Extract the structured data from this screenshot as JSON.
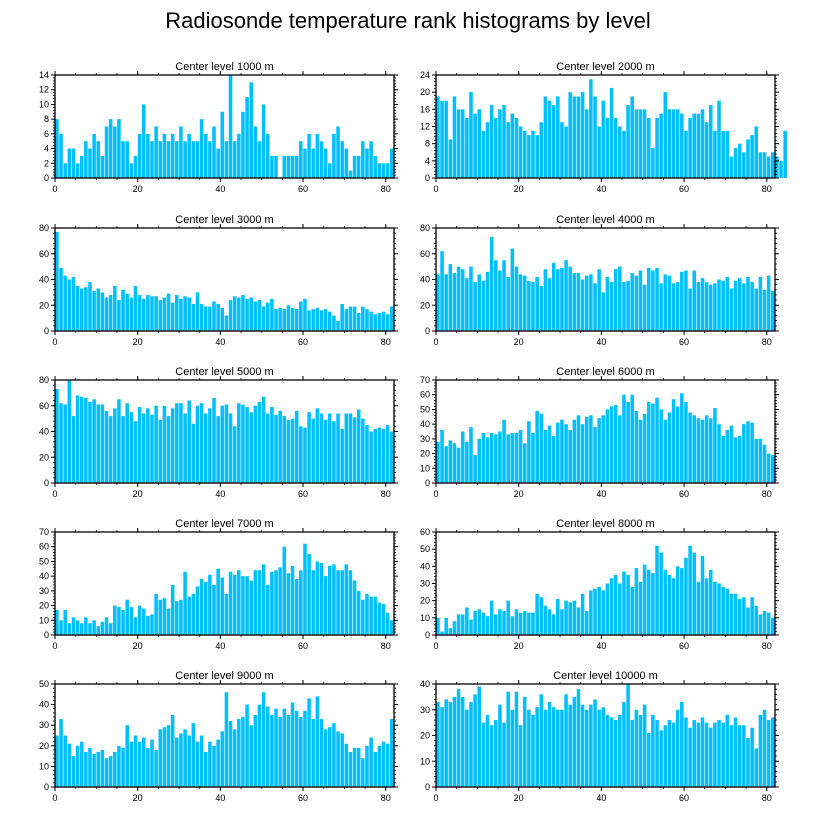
{
  "page_title": "Radiosonde temperature rank histograms by level",
  "colors": {
    "bar": "#00bfff",
    "axis": "#000000"
  },
  "chart_data": [
    {
      "type": "bar",
      "title": "Center level 1000 m",
      "xlabel": "",
      "ylabel": "",
      "xlim": [
        0,
        82
      ],
      "ylim": [
        0,
        14
      ],
      "xticks": [
        0,
        20,
        40,
        60,
        80
      ],
      "yticks": [
        0,
        2,
        4,
        6,
        8,
        10,
        12,
        14
      ],
      "values": [
        8,
        6,
        2,
        4,
        4,
        2,
        3,
        5,
        4,
        6,
        5,
        3,
        7,
        8,
        7,
        8,
        5,
        5,
        2,
        3,
        6,
        10,
        6,
        5,
        7,
        5,
        6,
        5,
        6,
        5,
        7,
        5,
        6,
        5,
        5,
        8,
        6,
        5,
        7,
        4,
        9,
        5,
        14,
        5,
        6,
        9,
        11,
        13,
        7,
        5,
        10,
        6,
        3,
        3,
        0,
        3,
        3,
        3,
        3,
        5,
        4,
        6,
        4,
        6,
        5,
        4,
        2,
        6,
        7,
        5,
        4,
        1,
        3,
        3,
        5,
        4,
        5,
        3,
        2,
        2,
        2,
        4
      ]
    },
    {
      "type": "bar",
      "title": "Center level 2000 m",
      "xlabel": "",
      "ylabel": "",
      "xlim": [
        0,
        82
      ],
      "ylim": [
        0,
        24
      ],
      "xticks": [
        0,
        20,
        40,
        60,
        80
      ],
      "yticks": [
        0,
        4,
        8,
        12,
        16,
        20,
        24
      ],
      "values": [
        19,
        18,
        18,
        9,
        19,
        16,
        16,
        14,
        20,
        15,
        16,
        11,
        13,
        17,
        14,
        16,
        17,
        13,
        15,
        14,
        12,
        11,
        10,
        11,
        10,
        13,
        19,
        18,
        17,
        19,
        13,
        12,
        20,
        19,
        19,
        20,
        16,
        23,
        19,
        12,
        18,
        14,
        21,
        14,
        12,
        11,
        17,
        19,
        16,
        16,
        16,
        14,
        7,
        14,
        15,
        20,
        16,
        16,
        16,
        15,
        11,
        14,
        15,
        15,
        16,
        13,
        17,
        11,
        18,
        11,
        11,
        5,
        7,
        8,
        6,
        9,
        10,
        12,
        6,
        6,
        5,
        6,
        5,
        4,
        11
      ]
    },
    {
      "type": "bar",
      "title": "Center level 3000 m",
      "xlabel": "",
      "ylabel": "",
      "xlim": [
        0,
        82
      ],
      "ylim": [
        0,
        80
      ],
      "xticks": [
        0,
        20,
        40,
        60,
        80
      ],
      "yticks": [
        0,
        20,
        40,
        60,
        80
      ],
      "values": [
        77,
        49,
        43,
        40,
        42,
        35,
        33,
        34,
        38,
        31,
        33,
        30,
        26,
        28,
        35,
        24,
        32,
        29,
        26,
        35,
        28,
        25,
        28,
        27,
        27,
        24,
        26,
        29,
        22,
        28,
        25,
        27,
        26,
        21,
        30,
        21,
        19,
        19,
        23,
        21,
        18,
        12,
        24,
        27,
        26,
        28,
        25,
        26,
        23,
        24,
        19,
        22,
        25,
        17,
        18,
        17,
        20,
        18,
        17,
        23,
        25,
        16,
        17,
        18,
        16,
        17,
        15,
        12,
        8,
        21,
        17,
        19,
        19,
        14,
        19,
        17,
        15,
        13,
        14,
        15,
        13,
        19
      ]
    },
    {
      "type": "bar",
      "title": "Center level 4000 m",
      "xlabel": "",
      "ylabel": "",
      "xlim": [
        0,
        82
      ],
      "ylim": [
        0,
        80
      ],
      "xticks": [
        0,
        20,
        40,
        60,
        80
      ],
      "yticks": [
        0,
        20,
        40,
        60,
        80
      ],
      "values": [
        44,
        62,
        44,
        52,
        45,
        50,
        48,
        41,
        50,
        38,
        44,
        39,
        46,
        73,
        55,
        47,
        55,
        42,
        64,
        50,
        44,
        43,
        39,
        38,
        42,
        35,
        48,
        41,
        53,
        48,
        49,
        55,
        50,
        45,
        45,
        40,
        43,
        44,
        37,
        48,
        30,
        42,
        38,
        48,
        50,
        38,
        39,
        45,
        43,
        47,
        36,
        49,
        47,
        49,
        37,
        44,
        43,
        37,
        38,
        46,
        47,
        33,
        47,
        38,
        41,
        38,
        36,
        37,
        40,
        39,
        42,
        33,
        39,
        41,
        37,
        42,
        38,
        33,
        42,
        32,
        43,
        31
      ]
    },
    {
      "type": "bar",
      "title": "Center level 5000 m",
      "xlabel": "",
      "ylabel": "",
      "xlim": [
        0,
        82
      ],
      "ylim": [
        0,
        80
      ],
      "xticks": [
        0,
        20,
        40,
        60,
        80
      ],
      "yticks": [
        0,
        20,
        40,
        60,
        80
      ],
      "values": [
        73,
        62,
        61,
        80,
        52,
        68,
        67,
        66,
        63,
        65,
        61,
        61,
        56,
        52,
        58,
        65,
        52,
        62,
        55,
        48,
        59,
        54,
        58,
        53,
        60,
        49,
        60,
        52,
        58,
        62,
        62,
        54,
        64,
        46,
        60,
        62,
        54,
        58,
        66,
        52,
        60,
        61,
        54,
        44,
        62,
        61,
        59,
        55,
        60,
        63,
        67,
        54,
        59,
        53,
        56,
        52,
        49,
        50,
        56,
        44,
        43,
        55,
        50,
        58,
        54,
        49,
        54,
        48,
        54,
        42,
        54,
        54,
        51,
        57,
        50,
        45,
        40,
        42,
        43,
        42,
        45,
        40
      ]
    },
    {
      "type": "bar",
      "title": "Center level 6000 m",
      "xlabel": "",
      "ylabel": "",
      "xlim": [
        0,
        82
      ],
      "ylim": [
        0,
        70
      ],
      "xticks": [
        0,
        20,
        40,
        60,
        80
      ],
      "yticks": [
        0,
        10,
        20,
        30,
        40,
        50,
        60,
        70
      ],
      "values": [
        28,
        36,
        25,
        29,
        27,
        24,
        35,
        28,
        38,
        19,
        30,
        34,
        31,
        34,
        33,
        35,
        43,
        33,
        34,
        34,
        36,
        27,
        42,
        34,
        49,
        47,
        36,
        39,
        32,
        41,
        43,
        40,
        36,
        43,
        46,
        40,
        45,
        46,
        38,
        44,
        46,
        50,
        52,
        53,
        46,
        60,
        55,
        60,
        49,
        43,
        47,
        55,
        54,
        58,
        50,
        43,
        48,
        57,
        52,
        61,
        55,
        48,
        46,
        44,
        43,
        46,
        44,
        51,
        40,
        32,
        36,
        39,
        31,
        32,
        40,
        42,
        41,
        30,
        30,
        26,
        20,
        19
      ]
    },
    {
      "type": "bar",
      "title": "Center level 7000 m",
      "xlabel": "",
      "ylabel": "",
      "xlim": [
        0,
        82
      ],
      "ylim": [
        0,
        70
      ],
      "xticks": [
        0,
        20,
        40,
        60,
        80
      ],
      "yticks": [
        0,
        10,
        20,
        30,
        40,
        50,
        60,
        70
      ],
      "values": [
        17,
        10,
        17,
        8,
        12,
        10,
        8,
        12,
        8,
        10,
        6,
        9,
        12,
        8,
        20,
        19,
        17,
        24,
        19,
        12,
        20,
        18,
        13,
        14,
        28,
        24,
        25,
        18,
        34,
        23,
        24,
        43,
        26,
        28,
        33,
        38,
        36,
        41,
        34,
        45,
        39,
        28,
        43,
        41,
        44,
        40,
        40,
        37,
        44,
        44,
        48,
        34,
        43,
        44,
        46,
        60,
        42,
        47,
        38,
        44,
        62,
        55,
        44,
        50,
        49,
        40,
        47,
        48,
        44,
        44,
        48,
        44,
        37,
        30,
        24,
        28,
        26,
        26,
        22,
        21,
        15,
        10
      ]
    },
    {
      "type": "bar",
      "title": "Center level 8000 m",
      "xlabel": "",
      "ylabel": "",
      "xlim": [
        0,
        82
      ],
      "ylim": [
        0,
        60
      ],
      "xticks": [
        0,
        20,
        40,
        60,
        80
      ],
      "yticks": [
        0,
        10,
        20,
        30,
        40,
        50,
        60
      ],
      "values": [
        10,
        2,
        10,
        4,
        8,
        12,
        12,
        16,
        9,
        14,
        15,
        13,
        11,
        20,
        12,
        15,
        14,
        20,
        11,
        15,
        13,
        14,
        13,
        13,
        24,
        22,
        17,
        15,
        12,
        21,
        15,
        20,
        19,
        20,
        16,
        24,
        14,
        26,
        27,
        28,
        26,
        30,
        33,
        35,
        30,
        37,
        35,
        28,
        39,
        31,
        41,
        38,
        36,
        52,
        48,
        38,
        35,
        33,
        40,
        39,
        45,
        52,
        48,
        31,
        46,
        33,
        38,
        31,
        30,
        28,
        27,
        24,
        24,
        21,
        22,
        16,
        22,
        17,
        12,
        14,
        13,
        10
      ]
    },
    {
      "type": "bar",
      "title": "Center level 9000 m",
      "xlabel": "",
      "ylabel": "",
      "xlim": [
        0,
        82
      ],
      "ylim": [
        0,
        50
      ],
      "xticks": [
        0,
        20,
        40,
        60,
        80
      ],
      "yticks": [
        0,
        10,
        20,
        30,
        40,
        50
      ],
      "values": [
        25,
        33,
        25,
        21,
        15,
        20,
        22,
        17,
        19,
        16,
        17,
        18,
        14,
        15,
        17,
        20,
        19,
        30,
        22,
        25,
        22,
        24,
        19,
        23,
        18,
        28,
        29,
        30,
        35,
        24,
        26,
        28,
        25,
        31,
        22,
        25,
        17,
        22,
        20,
        23,
        27,
        46,
        32,
        28,
        33,
        34,
        40,
        30,
        35,
        40,
        46,
        39,
        35,
        38,
        34,
        38,
        35,
        41,
        37,
        34,
        37,
        43,
        33,
        44,
        33,
        28,
        29,
        31,
        27,
        26,
        21,
        17,
        19,
        19,
        14,
        20,
        24,
        17,
        20,
        22,
        21,
        33
      ]
    },
    {
      "type": "bar",
      "title": "Center level 10000 m",
      "xlabel": "",
      "ylabel": "",
      "xlim": [
        0,
        82
      ],
      "ylim": [
        0,
        40
      ],
      "xticks": [
        0,
        20,
        40,
        60,
        80
      ],
      "yticks": [
        0,
        10,
        20,
        30,
        40
      ],
      "values": [
        33,
        31,
        34,
        33,
        35,
        38,
        35,
        30,
        33,
        36,
        39,
        25,
        28,
        24,
        26,
        32,
        25,
        37,
        30,
        37,
        24,
        35,
        30,
        28,
        31,
        36,
        30,
        33,
        31,
        30,
        30,
        36,
        32,
        35,
        38,
        32,
        30,
        32,
        34,
        30,
        31,
        28,
        27,
        26,
        28,
        33,
        40,
        26,
        30,
        28,
        32,
        21,
        28,
        26,
        22,
        24,
        26,
        25,
        30,
        33,
        27,
        23,
        26,
        25,
        27,
        25,
        23,
        25,
        26,
        25,
        28,
        24,
        27,
        24,
        24,
        19,
        23,
        15,
        28,
        30,
        26,
        27
      ]
    }
  ]
}
